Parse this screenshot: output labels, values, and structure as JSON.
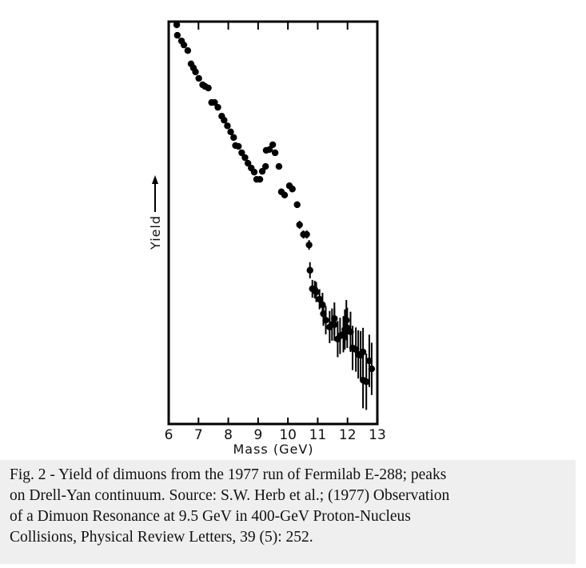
{
  "chart_data": {
    "type": "scatter",
    "title": "",
    "xlabel": "Mass (GeV)",
    "ylabel": "Yield",
    "xlim": [
      6,
      13
    ],
    "ylim": [
      0,
      1
    ],
    "y_units": "relative (no scale printed)",
    "xticks": [
      "6",
      "7",
      "8",
      "9",
      "10",
      "11",
      "12",
      "13"
    ],
    "grid": false,
    "marker_color": "#000000",
    "x": [
      6.27,
      6.29,
      6.43,
      6.51,
      6.64,
      6.75,
      6.83,
      6.9,
      7.01,
      7.14,
      7.22,
      7.33,
      7.44,
      7.54,
      7.65,
      7.78,
      7.86,
      7.97,
      8.08,
      8.18,
      8.24,
      8.34,
      8.45,
      8.56,
      8.66,
      8.77,
      8.87,
      8.95,
      9.06,
      9.14,
      9.25,
      9.27,
      9.38,
      9.49,
      9.57,
      9.7,
      9.78,
      9.89,
      10.05,
      10.15,
      10.31,
      10.39,
      10.52,
      10.63,
      10.71,
      10.74,
      10.82,
      10.9,
      10.95,
      11.06,
      11.16,
      11.19,
      11.27,
      11.4,
      11.48,
      11.56,
      11.56,
      11.67,
      11.75,
      11.86,
      11.91,
      11.99,
      11.96,
      12.1,
      12.17,
      12.28,
      12.36,
      12.44,
      12.52,
      12.52,
      12.63,
      12.73,
      12.81
    ],
    "y": [
      0.992,
      0.966,
      0.952,
      0.942,
      0.928,
      0.895,
      0.885,
      0.875,
      0.859,
      0.843,
      0.839,
      0.835,
      0.799,
      0.799,
      0.787,
      0.765,
      0.755,
      0.741,
      0.726,
      0.712,
      0.692,
      0.69,
      0.674,
      0.662,
      0.648,
      0.636,
      0.626,
      0.608,
      0.608,
      0.628,
      0.64,
      0.68,
      0.682,
      0.694,
      0.674,
      0.64,
      0.577,
      0.569,
      0.592,
      0.584,
      0.545,
      0.495,
      0.471,
      0.471,
      0.445,
      0.382,
      0.336,
      0.334,
      0.328,
      0.31,
      0.296,
      0.274,
      0.258,
      0.241,
      0.247,
      0.262,
      0.247,
      0.211,
      0.219,
      0.223,
      0.235,
      0.239,
      0.258,
      0.229,
      0.189,
      0.185,
      0.173,
      0.171,
      0.179,
      0.109,
      0.105,
      0.157,
      0.137
    ],
    "yerr": [
      0.006,
      0.006,
      0.006,
      0.006,
      0.006,
      0.006,
      0.006,
      0.006,
      0.006,
      0.006,
      0.006,
      0.006,
      0.006,
      0.006,
      0.006,
      0.006,
      0.006,
      0.006,
      0.006,
      0.006,
      0.006,
      0.006,
      0.006,
      0.006,
      0.006,
      0.006,
      0.006,
      0.006,
      0.006,
      0.006,
      0.006,
      0.006,
      0.006,
      0.006,
      0.006,
      0.006,
      0.008,
      0.008,
      0.008,
      0.008,
      0.008,
      0.01,
      0.01,
      0.01,
      0.012,
      0.02,
      0.022,
      0.022,
      0.025,
      0.025,
      0.03,
      0.03,
      0.035,
      0.04,
      0.04,
      0.04,
      0.04,
      0.045,
      0.045,
      0.045,
      0.05,
      0.05,
      0.05,
      0.05,
      0.055,
      0.055,
      0.06,
      0.06,
      0.06,
      0.07,
      0.07,
      0.065,
      0.065
    ]
  },
  "caption": {
    "lines": [
      "Fig. 2 - Yield of dimuons from the 1977 run of Fermilab E-288; peaks",
      "on Drell-Yan continuum. Source: S.W. Herb et al.;  (1977) Observation",
      "of a Dimuon Resonance at 9.5 GeV in 400-GeV Proton-Nucleus",
      "Collisions, Physical Review Letters, 39 (5): 252."
    ]
  }
}
